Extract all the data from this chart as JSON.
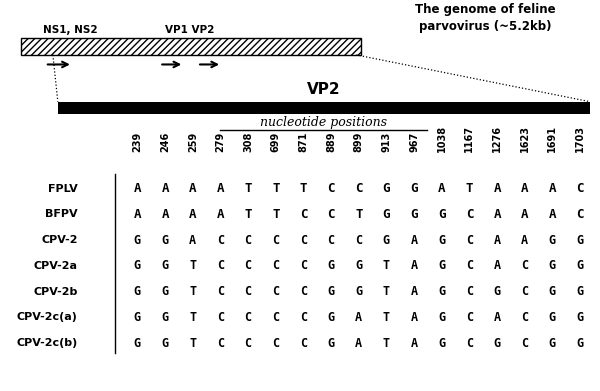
{
  "positions": [
    "239",
    "246",
    "259",
    "279",
    "308",
    "699",
    "871",
    "889",
    "899",
    "913",
    "967",
    "1038",
    "1167",
    "1276",
    "1623",
    "1691",
    "1703"
  ],
  "row_labels": [
    "FPLV",
    "BFPV",
    "CPV-2",
    "CPV-2a",
    "CPV-2b",
    "CPV-2c(a)",
    "CPV-2c(b)"
  ],
  "sequences": [
    [
      "A",
      "A",
      "A",
      "A",
      "T",
      "T",
      "T",
      "C",
      "C",
      "G",
      "G",
      "A",
      "T",
      "A",
      "A",
      "A",
      "C"
    ],
    [
      "A",
      "A",
      "A",
      "A",
      "T",
      "T",
      "C",
      "C",
      "T",
      "G",
      "G",
      "G",
      "C",
      "A",
      "A",
      "A",
      "C"
    ],
    [
      "G",
      "G",
      "A",
      "C",
      "C",
      "C",
      "C",
      "C",
      "C",
      "G",
      "A",
      "G",
      "C",
      "A",
      "A",
      "G",
      "G"
    ],
    [
      "G",
      "G",
      "T",
      "C",
      "C",
      "C",
      "C",
      "G",
      "G",
      "T",
      "A",
      "G",
      "C",
      "A",
      "C",
      "G",
      "G"
    ],
    [
      "G",
      "G",
      "T",
      "C",
      "C",
      "C",
      "C",
      "G",
      "G",
      "T",
      "A",
      "G",
      "C",
      "G",
      "C",
      "G",
      "G"
    ],
    [
      "G",
      "G",
      "T",
      "C",
      "C",
      "C",
      "C",
      "G",
      "A",
      "T",
      "A",
      "G",
      "C",
      "A",
      "C",
      "G",
      "G"
    ],
    [
      "G",
      "G",
      "T",
      "C",
      "C",
      "C",
      "C",
      "G",
      "A",
      "T",
      "A",
      "G",
      "C",
      "G",
      "C",
      "G",
      "G"
    ]
  ],
  "genome_title": "The genome of feline\nparvovirus (~5.2kb)",
  "label_nucleotide": "nucleotide positions",
  "vp2_label": "VP2",
  "ns_label": "NS1, NS2",
  "vp_label": "VP1 VP2"
}
